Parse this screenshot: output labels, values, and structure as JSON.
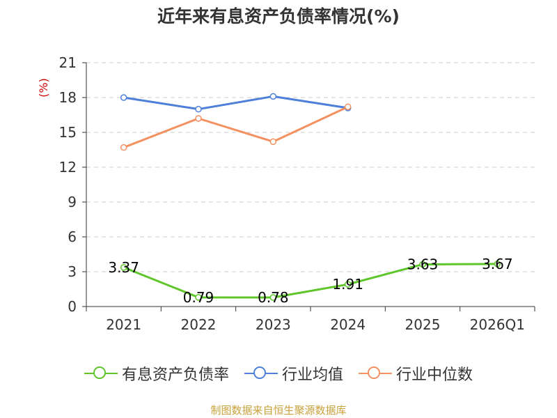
{
  "chart_data": {
    "type": "line",
    "title": "近年来有息资产负债率情况(%)",
    "ylabel": "(%)",
    "xlabel": "",
    "categories": [
      "2021",
      "2022",
      "2023",
      "2024",
      "2025",
      "2026Q1"
    ],
    "yticks": [
      0,
      3,
      6,
      9,
      12,
      15,
      18,
      21
    ],
    "ylim": [
      0,
      21
    ],
    "grid": true,
    "legend_position": "bottom",
    "series": [
      {
        "name": "有息资产负债率",
        "color": "#5ec62a",
        "values": [
          3.37,
          0.79,
          0.78,
          1.91,
          3.63,
          3.67
        ],
        "data_labels": [
          "3.37",
          "0.79",
          "0.78",
          "1.91",
          "3.63",
          "3.67"
        ]
      },
      {
        "name": "行业均值",
        "color": "#4e7fd9",
        "values": [
          18.0,
          17.0,
          18.1,
          17.1,
          null,
          null
        ]
      },
      {
        "name": "行业中位数",
        "color": "#f39161",
        "values": [
          13.7,
          16.2,
          14.2,
          17.2,
          null,
          null
        ]
      }
    ],
    "source": "制图数据来自恒生聚源数据库"
  }
}
